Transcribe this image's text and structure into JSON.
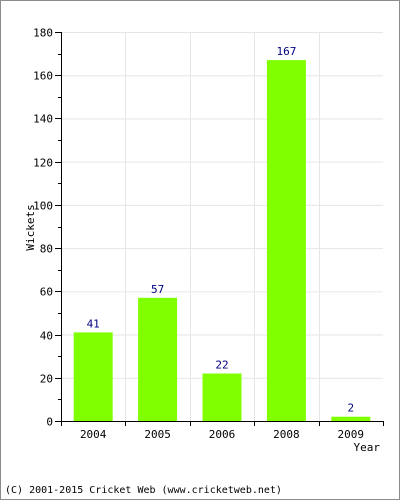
{
  "chart_data": {
    "type": "bar",
    "categories": [
      "2004",
      "2005",
      "2006",
      "2008",
      "2009"
    ],
    "values": [
      41,
      57,
      22,
      167,
      2
    ],
    "data_labels": [
      "41",
      "57",
      "22",
      "167",
      "2"
    ],
    "xlabel": "Year",
    "ylabel": "Wickets",
    "ylim": [
      0,
      180
    ],
    "yticks": [
      0,
      20,
      40,
      60,
      80,
      100,
      120,
      140,
      160,
      180
    ],
    "grid": true,
    "bar_color": "#80ff00",
    "label_color": "#000080",
    "grid_color": "#e6e6e6"
  },
  "footer": {
    "copyright": "(C) 2001-2015 Cricket Web (www.cricketweb.net)"
  }
}
